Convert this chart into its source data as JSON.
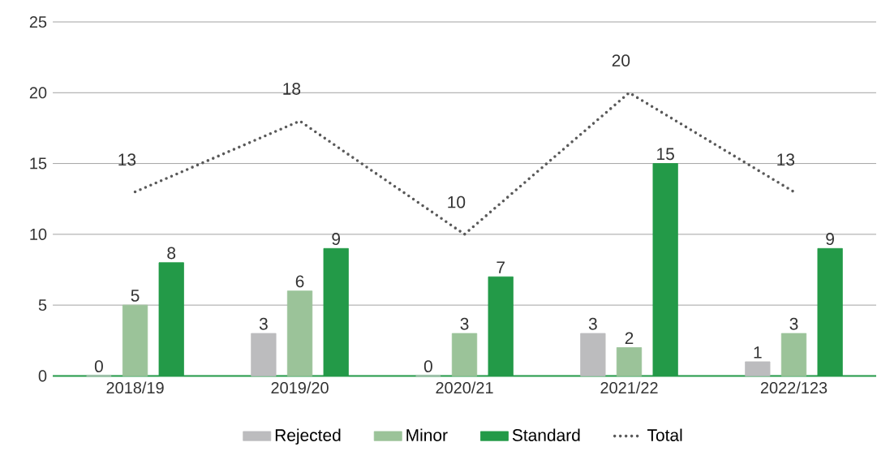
{
  "chart_data": {
    "type": "bar",
    "categories": [
      "2018/19",
      "2019/20",
      "2020/21",
      "2021/22",
      "2022/123"
    ],
    "series": [
      {
        "name": "Rejected",
        "color": "#bcbcbe",
        "values": [
          0,
          3,
          0,
          3,
          1
        ]
      },
      {
        "name": "Minor",
        "color": "#9bc399",
        "values": [
          5,
          6,
          3,
          2,
          3
        ]
      },
      {
        "name": "Standard",
        "color": "#239a48",
        "values": [
          8,
          9,
          7,
          15,
          9
        ]
      },
      {
        "name": "Total",
        "type": "line",
        "color": "#595959",
        "line_style": "dotted",
        "marker": "none",
        "values": [
          13,
          18,
          10,
          20,
          13
        ]
      }
    ],
    "ylim": [
      0,
      25
    ],
    "yticks": [
      0,
      5,
      10,
      15,
      20,
      25
    ],
    "grid": "y",
    "legend": "bottom",
    "data_labels": true
  }
}
